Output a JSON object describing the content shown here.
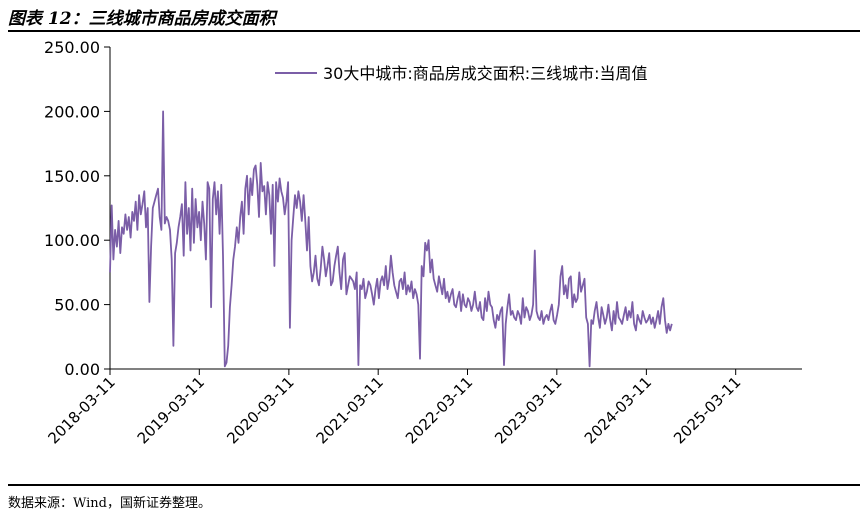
{
  "header": {
    "title": "图表 12：三线城市商品房成交面积"
  },
  "footer": {
    "source": "数据来源：Wind，国新证券整理。"
  },
  "colors": {
    "line": "#7B5EA7",
    "axis": "#000000",
    "rule": "#000000"
  },
  "chart_data": {
    "type": "line",
    "title": "",
    "xlabel": "",
    "ylabel": "",
    "ylim": [
      0,
      250
    ],
    "y_ticks": [
      "0.00",
      "50.00",
      "100.00",
      "150.00",
      "200.00",
      "250.00"
    ],
    "x_ticks": [
      "2018-03-11",
      "2019-03-11",
      "2020-03-11",
      "2021-03-11",
      "2022-03-11",
      "2023-03-11",
      "2024-03-11",
      "2025-03-11"
    ],
    "x_range": [
      "2018-03-11",
      "2025-12-07"
    ],
    "grid": false,
    "legend_position": "top-right",
    "series": [
      {
        "name": "30大中城市:商品房成交面积:三线城市:当周值",
        "frequency": "weekly",
        "start": "2018-03-11",
        "values": [
          75,
          127,
          85,
          108,
          95,
          115,
          90,
          110,
          105,
          120,
          108,
          118,
          102,
          122,
          115,
          130,
          108,
          135,
          120,
          128,
          138,
          110,
          125,
          52,
          95,
          125,
          130,
          135,
          140,
          118,
          108,
          200,
          113,
          118,
          115,
          108,
          85,
          18,
          90,
          98,
          110,
          118,
          128,
          88,
          145,
          105,
          125,
          92,
          140,
          98,
          132,
          110,
          122,
          100,
          130,
          113,
          85,
          145,
          140,
          48,
          132,
          145,
          120,
          138,
          105,
          143,
          88,
          2,
          5,
          18,
          48,
          65,
          85,
          95,
          110,
          98,
          118,
          130,
          105,
          140,
          150,
          120,
          148,
          135,
          155,
          158,
          143,
          118,
          160,
          138,
          142,
          120,
          145,
          135,
          105,
          143,
          80,
          145,
          130,
          148,
          138,
          133,
          120,
          130,
          145,
          32,
          100,
          118,
          135,
          125,
          138,
          130,
          115,
          135,
          115,
          92,
          118,
          80,
          68,
          75,
          88,
          70,
          65,
          78,
          95,
          85,
          72,
          80,
          90,
          65,
          68,
          80,
          88,
          95,
          75,
          62,
          85,
          90,
          58,
          65,
          72,
          70,
          68,
          62,
          75,
          3,
          65,
          62,
          70,
          55,
          60,
          68,
          65,
          58,
          50,
          62,
          70,
          55,
          68,
          72,
          65,
          80,
          62,
          70,
          88,
          75,
          65,
          60,
          55,
          68,
          70,
          62,
          75,
          58,
          65,
          60,
          68,
          55,
          62,
          58,
          50,
          8,
          80,
          72,
          98,
          92,
          100,
          75,
          85,
          70,
          65,
          60,
          72,
          65,
          58,
          70,
          55,
          60,
          52,
          58,
          62,
          50,
          48,
          55,
          60,
          45,
          58,
          50,
          48,
          55,
          52,
          45,
          50,
          60,
          48,
          45,
          52,
          40,
          38,
          55,
          45,
          60,
          50,
          48,
          38,
          32,
          42,
          38,
          45,
          48,
          3,
          35,
          48,
          58,
          42,
          45,
          40,
          38,
          45,
          42,
          35,
          55,
          40,
          48,
          45,
          38,
          42,
          50,
          92,
          45,
          40,
          38,
          45,
          35,
          40,
          42,
          38,
          45,
          50,
          38,
          35,
          42,
          50,
          72,
          80,
          58,
          65,
          55,
          70,
          72,
          48,
          58,
          52,
          55,
          75,
          60,
          65,
          70,
          40,
          35,
          2,
          38,
          35,
          45,
          52,
          40,
          32,
          48,
          42,
          35,
          40,
          50,
          38,
          30,
          45,
          35,
          52,
          40,
          38,
          35,
          42,
          48,
          38,
          45,
          40,
          52,
          35,
          30,
          42,
          38,
          35,
          45,
          40,
          36,
          38,
          42,
          35,
          40,
          32,
          38,
          45,
          35,
          48,
          55,
          38,
          28,
          35,
          30,
          35
        ]
      }
    ]
  }
}
